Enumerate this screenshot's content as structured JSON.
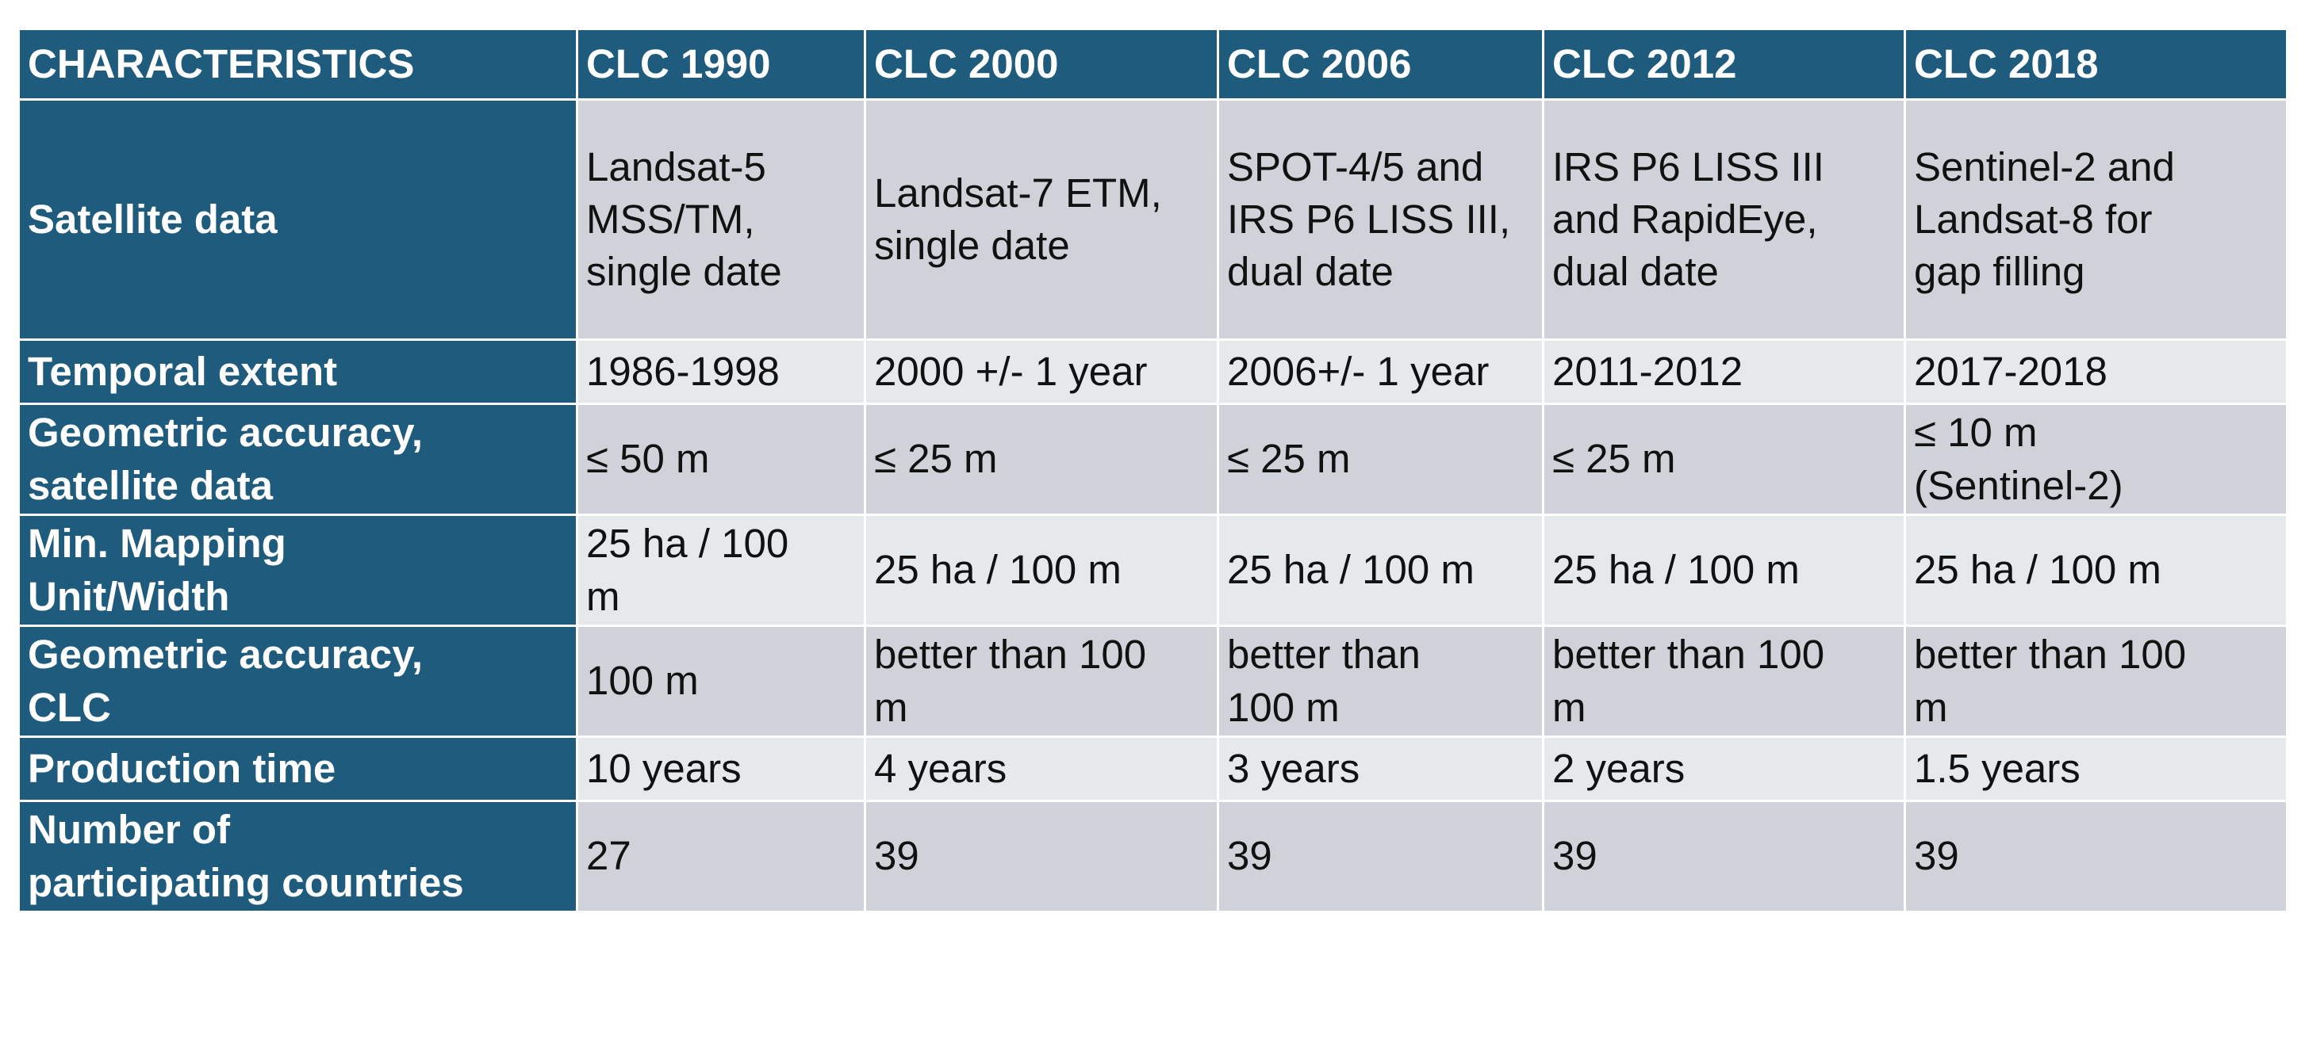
{
  "table": {
    "headers": [
      "CHARACTERISTICS",
      "CLC 1990",
      "CLC 2000",
      "CLC 2006",
      "CLC 2012",
      "CLC 2018"
    ],
    "rows": [
      {
        "label": "Satellite data",
        "cells": [
          "Landsat-5\nMSS/TM,\nsingle date",
          "Landsat-7 ETM,\nsingle date",
          "SPOT-4/5 and\nIRS P6 LISS III,\ndual date",
          "IRS P6 LISS III\nand RapidEye,\ndual date",
          "Sentinel-2 and\nLandsat-8 for\ngap filling"
        ]
      },
      {
        "label": "Temporal extent",
        "cells": [
          "1986-1998",
          "2000 +/- 1 year",
          "2006+/- 1 year",
          "2011-2012",
          "2017-2018"
        ]
      },
      {
        "label": "Geometric accuracy,\nsatellite data",
        "cells": [
          "≤ 50 m",
          "≤ 25 m",
          "≤ 25 m",
          "≤ 25 m",
          "≤ 10 m\n(Sentinel-2)"
        ]
      },
      {
        "label": "Min. Mapping\nUnit/Width",
        "cells": [
          "25 ha / 100\nm",
          "25 ha / 100 m",
          "25 ha / 100 m",
          "25 ha / 100 m",
          "25 ha / 100 m"
        ]
      },
      {
        "label": "Geometric accuracy,\nCLC",
        "cells": [
          "100 m",
          "better than 100\nm",
          "better than\n100 m",
          "better than 100\nm",
          "better than 100\nm"
        ]
      },
      {
        "label": "Production time",
        "cells": [
          "10 years",
          "4 years",
          "3 years",
          "2 years",
          "1.5 years"
        ]
      },
      {
        "label": "Number of\nparticipating countries",
        "cells": [
          "27",
          "39",
          "39",
          "39",
          "39"
        ]
      }
    ]
  }
}
